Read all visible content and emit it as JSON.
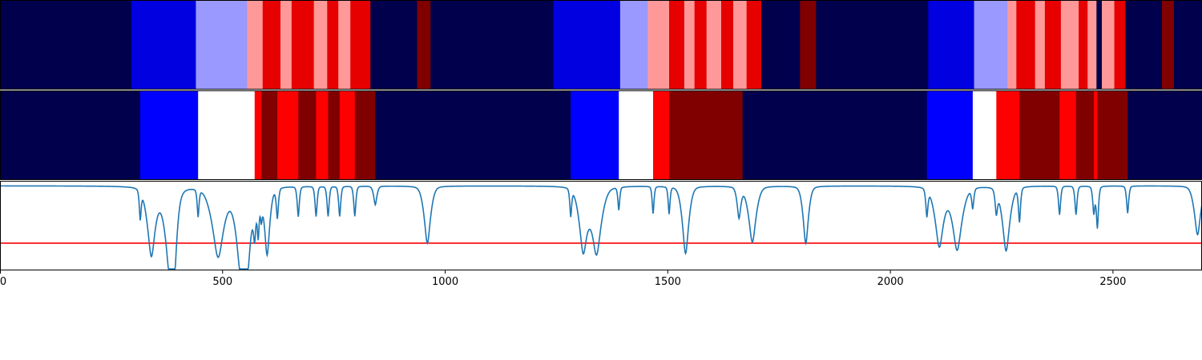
{
  "chart_data": {
    "type": "heatmap",
    "x_range": [
      0,
      2700
    ],
    "x_ticks": [
      0,
      500,
      1000,
      1500,
      2000,
      2500
    ],
    "x_tick_labels": [
      "0",
      "500",
      "1000",
      "1500",
      "2000",
      "2500"
    ],
    "colors": {
      "navy": "#00004c",
      "blue": "#0000ff",
      "mid_blue": "#0000e0",
      "light_blue": "#9999ff",
      "white": "#ffffff",
      "pink": "#ff9999",
      "red": "#ff0000",
      "bright_red": "#e60000",
      "dark_red": "#800000",
      "line": "#1f77b4",
      "threshold": "#ff0000"
    },
    "rows": [
      {
        "segments": [
          [
            0,
            295,
            "navy"
          ],
          [
            295,
            440,
            "mid_blue"
          ],
          [
            440,
            555,
            "light_blue"
          ],
          [
            555,
            590,
            "pink"
          ],
          [
            590,
            630,
            "bright_red"
          ],
          [
            630,
            655,
            "pink"
          ],
          [
            655,
            705,
            "bright_red"
          ],
          [
            705,
            735,
            "pink"
          ],
          [
            735,
            760,
            "bright_red"
          ],
          [
            760,
            787,
            "pink"
          ],
          [
            787,
            832,
            "bright_red"
          ],
          [
            832,
            937,
            "navy"
          ],
          [
            937,
            967,
            "dark_red"
          ],
          [
            967,
            1243,
            "navy"
          ],
          [
            1243,
            1393,
            "mid_blue"
          ],
          [
            1393,
            1455,
            "light_blue"
          ],
          [
            1455,
            1503,
            "pink"
          ],
          [
            1503,
            1537,
            "bright_red"
          ],
          [
            1537,
            1560,
            "pink"
          ],
          [
            1560,
            1587,
            "bright_red"
          ],
          [
            1587,
            1620,
            "pink"
          ],
          [
            1620,
            1647,
            "bright_red"
          ],
          [
            1647,
            1677,
            "pink"
          ],
          [
            1677,
            1710,
            "bright_red"
          ],
          [
            1710,
            1797,
            "navy"
          ],
          [
            1797,
            1833,
            "dark_red"
          ],
          [
            1833,
            2085,
            "navy"
          ],
          [
            2085,
            2188,
            "mid_blue"
          ],
          [
            2188,
            2263,
            "light_blue"
          ],
          [
            2263,
            2283,
            "pink"
          ],
          [
            2283,
            2325,
            "bright_red"
          ],
          [
            2325,
            2347,
            "pink"
          ],
          [
            2347,
            2383,
            "bright_red"
          ],
          [
            2383,
            2423,
            "pink"
          ],
          [
            2423,
            2443,
            "bright_red"
          ],
          [
            2443,
            2463,
            "pink"
          ],
          [
            2463,
            2475,
            "navy"
          ],
          [
            2475,
            2503,
            "pink"
          ],
          [
            2503,
            2528,
            "bright_red"
          ],
          [
            2528,
            2610,
            "navy"
          ],
          [
            2610,
            2637,
            "dark_red"
          ],
          [
            2637,
            2700,
            "navy"
          ]
        ]
      },
      {
        "segments": [
          [
            0,
            315,
            "navy"
          ],
          [
            315,
            445,
            "blue"
          ],
          [
            445,
            572,
            "white"
          ],
          [
            572,
            587,
            "red"
          ],
          [
            587,
            623,
            "dark_red"
          ],
          [
            623,
            670,
            "red"
          ],
          [
            670,
            710,
            "dark_red"
          ],
          [
            710,
            737,
            "red"
          ],
          [
            737,
            763,
            "dark_red"
          ],
          [
            763,
            797,
            "red"
          ],
          [
            797,
            843,
            "dark_red"
          ],
          [
            843,
            1282,
            "navy"
          ],
          [
            1282,
            1390,
            "blue"
          ],
          [
            1390,
            1467,
            "white"
          ],
          [
            1467,
            1503,
            "red"
          ],
          [
            1503,
            1668,
            "dark_red"
          ],
          [
            1668,
            2082,
            "navy"
          ],
          [
            2082,
            2185,
            "blue"
          ],
          [
            2185,
            2238,
            "white"
          ],
          [
            2238,
            2290,
            "red"
          ],
          [
            2290,
            2380,
            "dark_red"
          ],
          [
            2380,
            2417,
            "red"
          ],
          [
            2417,
            2457,
            "dark_red"
          ],
          [
            2457,
            2465,
            "red"
          ],
          [
            2465,
            2533,
            "dark_red"
          ],
          [
            2533,
            2700,
            "navy"
          ]
        ]
      }
    ],
    "line_series": {
      "y_range": [
        -0.2,
        1.05
      ],
      "threshold": 0.18,
      "baseline": 0.98,
      "dips": [
        [
          315,
          0.58,
          3.5
        ],
        [
          340,
          0.03,
          15
        ],
        [
          380,
          0.01,
          18
        ],
        [
          390,
          0.03,
          10
        ],
        [
          445,
          0.6,
          3.5
        ],
        [
          490,
          0.01,
          22
        ],
        [
          540,
          0.02,
          18
        ],
        [
          555,
          0.06,
          15
        ],
        [
          572,
          0.48,
          4.5
        ],
        [
          580,
          0.4,
          4
        ],
        [
          587,
          0.68,
          3.5
        ],
        [
          600,
          0.05,
          10
        ],
        [
          623,
          0.56,
          4
        ],
        [
          670,
          0.56,
          4
        ],
        [
          710,
          0.56,
          4
        ],
        [
          737,
          0.56,
          4
        ],
        [
          763,
          0.56,
          4
        ],
        [
          797,
          0.56,
          4
        ],
        [
          843,
          0.72,
          6
        ],
        [
          960,
          0.18,
          12
        ],
        [
          1282,
          0.6,
          3.5
        ],
        [
          1310,
          0.1,
          15
        ],
        [
          1340,
          0.05,
          18
        ],
        [
          1390,
          0.66,
          3.5
        ],
        [
          1467,
          0.6,
          3.5
        ],
        [
          1503,
          0.6,
          3.5
        ],
        [
          1540,
          0.04,
          12
        ],
        [
          1660,
          0.55,
          7
        ],
        [
          1690,
          0.2,
          14
        ],
        [
          1810,
          0.18,
          10
        ],
        [
          2082,
          0.6,
          4
        ],
        [
          2110,
          0.15,
          16
        ],
        [
          2150,
          0.1,
          18
        ],
        [
          2185,
          0.7,
          4
        ],
        [
          2238,
          0.65,
          4.5
        ],
        [
          2260,
          0.08,
          14
        ],
        [
          2290,
          0.5,
          4
        ],
        [
          2380,
          0.58,
          4
        ],
        [
          2417,
          0.58,
          4
        ],
        [
          2457,
          0.6,
          4
        ],
        [
          2465,
          0.4,
          4
        ],
        [
          2533,
          0.6,
          4
        ],
        [
          2690,
          0.3,
          12
        ]
      ]
    }
  }
}
